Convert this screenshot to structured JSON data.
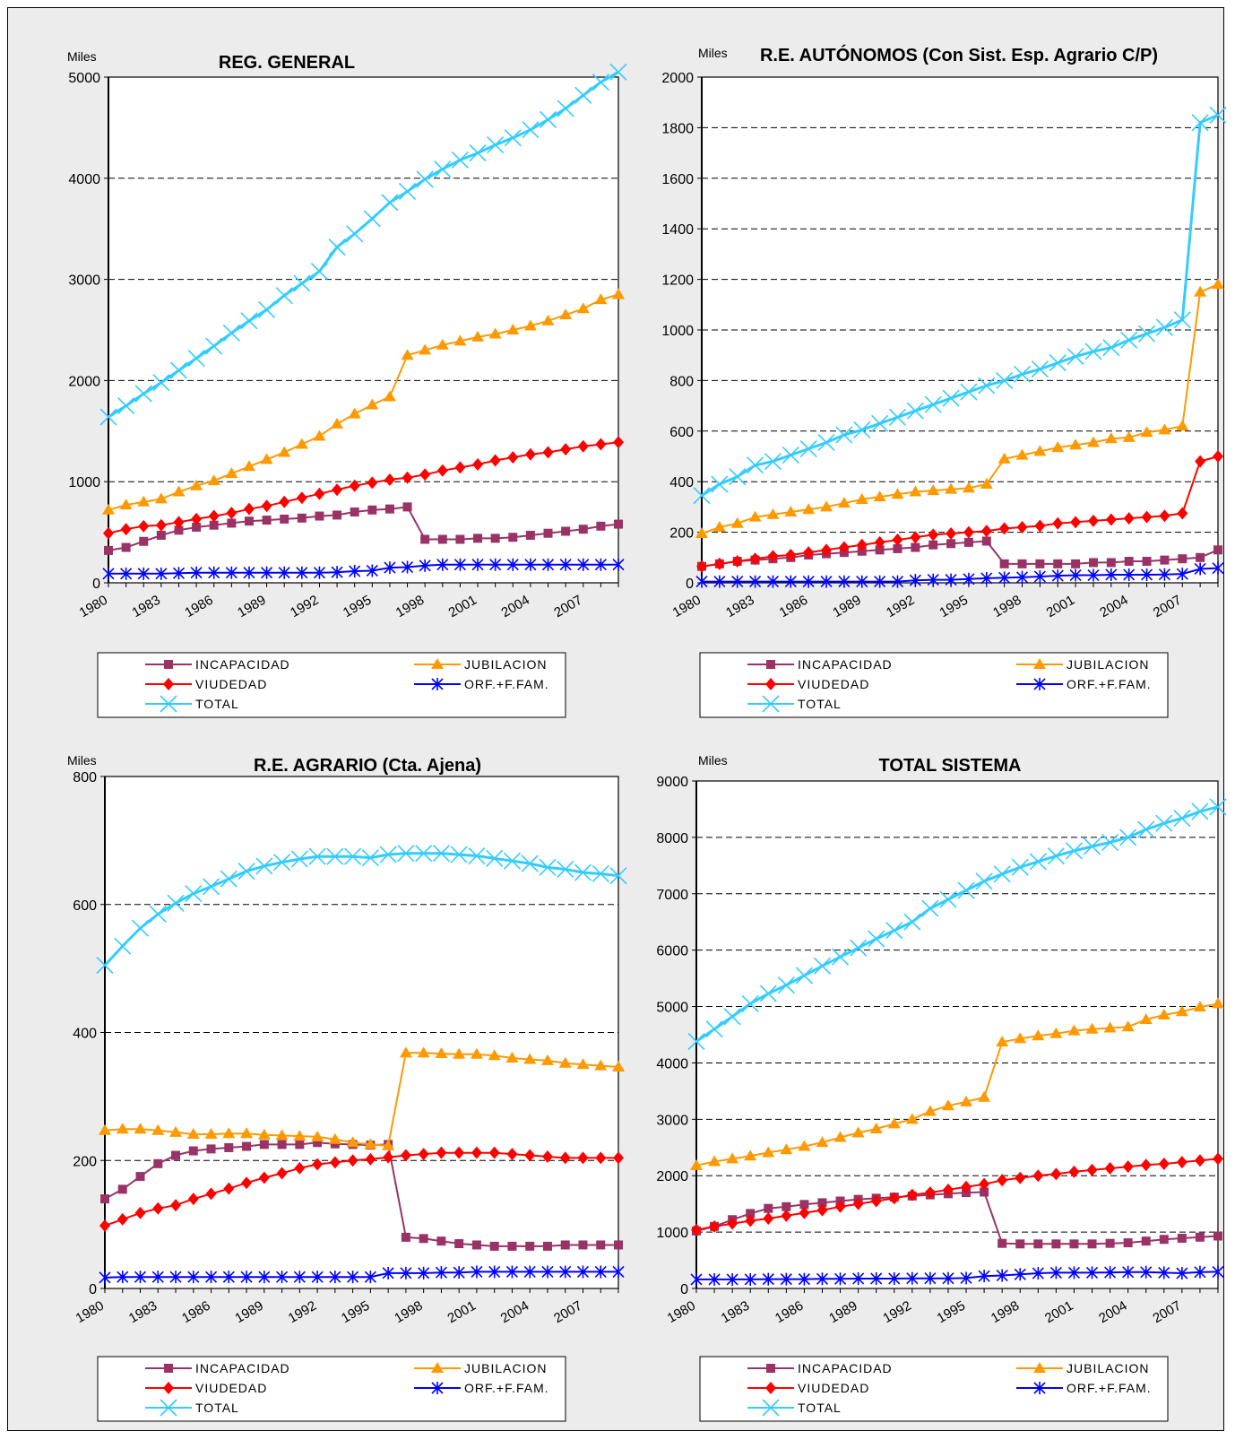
{
  "legend_labels": [
    "INCAPACIDAD",
    "JUBILACION",
    "VIUDEDAD",
    "ORF.+F.FAM.",
    "TOTAL"
  ],
  "colors": {
    "INCAPACIDAD": "#993366",
    "JUBILACION": "#FF9900",
    "VIUDEDAD": "#FF0000",
    "ORF.+F.FAM.": "#0000FF",
    "TOTAL": "#33CCFF"
  },
  "chart_data": [
    {
      "type": "line",
      "title": "REG. GENERAL",
      "unit_label": "Miles",
      "ylim": [
        0,
        5000
      ],
      "yticks": [
        0,
        1000,
        2000,
        3000,
        4000,
        5000
      ],
      "grid": true,
      "x": [
        1980,
        1981,
        1982,
        1983,
        1984,
        1985,
        1986,
        1987,
        1988,
        1989,
        1990,
        1991,
        1992,
        1993,
        1994,
        1995,
        1996,
        1997,
        1998,
        1999,
        2000,
        2001,
        2002,
        2003,
        2004,
        2005,
        2006,
        2007,
        2008,
        2009
      ],
      "xtick_labels": [
        "1980",
        "1983",
        "1986",
        "1989",
        "1992",
        "1995",
        "1998",
        "2001",
        "2004",
        "2007"
      ],
      "series": [
        {
          "name": "INCAPACIDAD",
          "values": [
            320,
            350,
            410,
            470,
            520,
            550,
            570,
            590,
            610,
            620,
            630,
            640,
            660,
            670,
            700,
            720,
            730,
            750,
            430,
            430,
            430,
            440,
            440,
            450,
            470,
            490,
            510,
            530,
            560,
            580
          ]
        },
        {
          "name": "JUBILACION",
          "values": [
            720,
            770,
            800,
            830,
            900,
            960,
            1010,
            1080,
            1150,
            1220,
            1290,
            1370,
            1450,
            1570,
            1670,
            1760,
            1840,
            2250,
            2300,
            2350,
            2390,
            2430,
            2460,
            2500,
            2540,
            2590,
            2650,
            2710,
            2800,
            2850
          ]
        },
        {
          "name": "VIUDEDAD",
          "values": [
            490,
            530,
            560,
            570,
            600,
            630,
            660,
            690,
            730,
            760,
            800,
            840,
            880,
            920,
            960,
            990,
            1020,
            1040,
            1070,
            1110,
            1140,
            1170,
            1210,
            1240,
            1270,
            1290,
            1320,
            1350,
            1370,
            1390
          ]
        },
        {
          "name": "ORF.+F.FAM.",
          "values": [
            90,
            90,
            90,
            90,
            95,
            100,
            100,
            100,
            100,
            100,
            100,
            100,
            100,
            105,
            115,
            120,
            150,
            155,
            170,
            180,
            180,
            180,
            180,
            180,
            180,
            180,
            180,
            180,
            180,
            180
          ]
        },
        {
          "name": "TOTAL",
          "values": [
            1640,
            1750,
            1870,
            1980,
            2100,
            2220,
            2340,
            2470,
            2590,
            2700,
            2840,
            2960,
            3080,
            3320,
            3450,
            3600,
            3760,
            3870,
            3990,
            4090,
            4180,
            4250,
            4330,
            4400,
            4480,
            4580,
            4690,
            4820,
            4950,
            5050
          ]
        }
      ]
    },
    {
      "type": "line",
      "title": "R.E. AUTÓNOMOS (Con Sist. Esp. Agrario C/P)",
      "unit_label": "Miles",
      "ylim": [
        0,
        2000
      ],
      "yticks": [
        0,
        200,
        400,
        600,
        800,
        1000,
        1200,
        1400,
        1600,
        1800,
        2000
      ],
      "grid": true,
      "x": [
        1980,
        1981,
        1982,
        1983,
        1984,
        1985,
        1986,
        1987,
        1988,
        1989,
        1990,
        1991,
        1992,
        1993,
        1994,
        1995,
        1996,
        1997,
        1998,
        1999,
        2000,
        2001,
        2002,
        2003,
        2004,
        2005,
        2006,
        2007,
        2008,
        2009
      ],
      "xtick_labels": [
        "1980",
        "1983",
        "1986",
        "1989",
        "1992",
        "1995",
        "1998",
        "2001",
        "2004",
        "2007"
      ],
      "series": [
        {
          "name": "INCAPACIDAD",
          "values": [
            65,
            75,
            85,
            90,
            95,
            100,
            110,
            115,
            120,
            125,
            130,
            135,
            140,
            150,
            155,
            160,
            165,
            75,
            75,
            75,
            75,
            75,
            80,
            80,
            85,
            85,
            90,
            95,
            100,
            130
          ]
        },
        {
          "name": "JUBILACION",
          "values": [
            195,
            220,
            235,
            260,
            270,
            280,
            290,
            300,
            315,
            330,
            340,
            350,
            360,
            365,
            370,
            375,
            390,
            490,
            505,
            520,
            535,
            545,
            555,
            570,
            575,
            595,
            605,
            620,
            1150,
            1180
          ]
        },
        {
          "name": "VIUDEDAD",
          "values": [
            65,
            75,
            85,
            95,
            105,
            110,
            120,
            130,
            140,
            150,
            160,
            170,
            180,
            190,
            195,
            200,
            205,
            215,
            220,
            225,
            235,
            240,
            245,
            250,
            255,
            260,
            265,
            275,
            480,
            500
          ]
        },
        {
          "name": "ORF.+F.FAM.",
          "values": [
            5,
            5,
            5,
            5,
            5,
            5,
            5,
            5,
            5,
            5,
            5,
            5,
            10,
            12,
            12,
            15,
            18,
            20,
            22,
            25,
            28,
            30,
            30,
            32,
            32,
            32,
            33,
            35,
            55,
            58
          ]
        },
        {
          "name": "TOTAL",
          "values": [
            345,
            390,
            420,
            465,
            480,
            505,
            530,
            555,
            585,
            605,
            630,
            655,
            680,
            705,
            730,
            755,
            780,
            800,
            825,
            845,
            870,
            895,
            915,
            930,
            960,
            985,
            1010,
            1040,
            1820,
            1850
          ]
        }
      ]
    },
    {
      "type": "line",
      "title": "R.E. AGRARIO (Cta. Ajena)",
      "unit_label": "Miles",
      "ylim": [
        0,
        800
      ],
      "yticks": [
        0,
        200,
        400,
        600,
        800
      ],
      "grid": true,
      "x": [
        1980,
        1981,
        1982,
        1983,
        1984,
        1985,
        1986,
        1987,
        1988,
        1989,
        1990,
        1991,
        1992,
        1993,
        1994,
        1995,
        1996,
        1997,
        1998,
        1999,
        2000,
        2001,
        2002,
        2003,
        2004,
        2005,
        2006,
        2007,
        2008,
        2009
      ],
      "xtick_labels": [
        "1980",
        "1983",
        "1986",
        "1989",
        "1992",
        "1995",
        "1998",
        "2001",
        "2004",
        "2007"
      ],
      "series": [
        {
          "name": "INCAPACIDAD",
          "values": [
            140,
            155,
            175,
            195,
            208,
            215,
            218,
            220,
            222,
            225,
            225,
            225,
            228,
            226,
            225,
            224,
            225,
            80,
            78,
            74,
            70,
            68,
            66,
            66,
            66,
            66,
            68,
            68,
            68,
            68
          ]
        },
        {
          "name": "JUBILACION",
          "values": [
            247,
            249,
            249,
            247,
            244,
            241,
            241,
            242,
            242,
            240,
            239,
            238,
            237,
            233,
            228,
            225,
            223,
            368,
            368,
            367,
            366,
            366,
            364,
            360,
            358,
            356,
            352,
            350,
            348,
            346
          ]
        },
        {
          "name": "VIUDEDAD",
          "values": [
            98,
            108,
            118,
            125,
            130,
            140,
            148,
            156,
            165,
            173,
            180,
            188,
            194,
            197,
            200,
            202,
            205,
            208,
            210,
            212,
            212,
            212,
            212,
            210,
            208,
            206,
            204,
            204,
            204,
            204
          ]
        },
        {
          "name": "ORF.+F.FAM.",
          "values": [
            17,
            18,
            18,
            18,
            18,
            18,
            18,
            18,
            18,
            18,
            18,
            18,
            18,
            18,
            18,
            18,
            24,
            24,
            24,
            25,
            25,
            26,
            26,
            26,
            26,
            26,
            26,
            26,
            26,
            26
          ]
        },
        {
          "name": "TOTAL",
          "values": [
            505,
            535,
            563,
            585,
            602,
            617,
            628,
            640,
            652,
            660,
            666,
            671,
            675,
            675,
            675,
            673,
            678,
            680,
            680,
            680,
            678,
            676,
            672,
            668,
            664,
            658,
            655,
            650,
            648,
            645
          ]
        }
      ]
    },
    {
      "type": "line",
      "title": "TOTAL SISTEMA",
      "unit_label": "Miles",
      "ylim": [
        0,
        9000
      ],
      "yticks": [
        0,
        1000,
        2000,
        3000,
        4000,
        5000,
        6000,
        7000,
        8000,
        9000
      ],
      "grid": true,
      "x": [
        1980,
        1981,
        1982,
        1983,
        1984,
        1985,
        1986,
        1987,
        1988,
        1989,
        1990,
        1991,
        1992,
        1993,
        1994,
        1995,
        1996,
        1997,
        1998,
        1999,
        2000,
        2001,
        2002,
        2003,
        2004,
        2005,
        2006,
        2007,
        2008,
        2009
      ],
      "xtick_labels": [
        "1980",
        "1983",
        "1986",
        "1989",
        "1992",
        "1995",
        "1998",
        "2001",
        "2004",
        "2007"
      ],
      "series": [
        {
          "name": "INCAPACIDAD",
          "values": [
            1020,
            1100,
            1220,
            1330,
            1420,
            1450,
            1490,
            1520,
            1550,
            1580,
            1600,
            1620,
            1640,
            1660,
            1680,
            1700,
            1710,
            800,
            790,
            790,
            790,
            790,
            790,
            800,
            810,
            840,
            870,
            890,
            910,
            930
          ]
        },
        {
          "name": "JUBILACION",
          "values": [
            2180,
            2250,
            2300,
            2350,
            2410,
            2460,
            2520,
            2590,
            2680,
            2760,
            2830,
            2920,
            3000,
            3140,
            3240,
            3310,
            3390,
            4370,
            4430,
            4480,
            4520,
            4570,
            4600,
            4620,
            4640,
            4770,
            4850,
            4910,
            4990,
            5050
          ]
        },
        {
          "name": "VIUDEDAD",
          "values": [
            1040,
            1100,
            1150,
            1200,
            1240,
            1290,
            1340,
            1390,
            1450,
            1500,
            1550,
            1600,
            1660,
            1700,
            1750,
            1800,
            1850,
            1920,
            1960,
            2000,
            2030,
            2070,
            2100,
            2130,
            2160,
            2190,
            2210,
            2240,
            2270,
            2300
          ]
        },
        {
          "name": "ORF.+F.FAM.",
          "values": [
            160,
            160,
            160,
            160,
            165,
            165,
            165,
            170,
            170,
            175,
            175,
            175,
            180,
            180,
            180,
            185,
            220,
            230,
            250,
            270,
            280,
            280,
            280,
            285,
            290,
            290,
            280,
            270,
            290,
            295
          ]
        },
        {
          "name": "TOTAL",
          "values": [
            4380,
            4600,
            4820,
            5050,
            5230,
            5380,
            5550,
            5720,
            5880,
            6040,
            6200,
            6350,
            6500,
            6740,
            6900,
            7060,
            7220,
            7350,
            7470,
            7570,
            7670,
            7760,
            7840,
            7910,
            8000,
            8140,
            8250,
            8340,
            8460,
            8540
          ]
        }
      ]
    }
  ]
}
